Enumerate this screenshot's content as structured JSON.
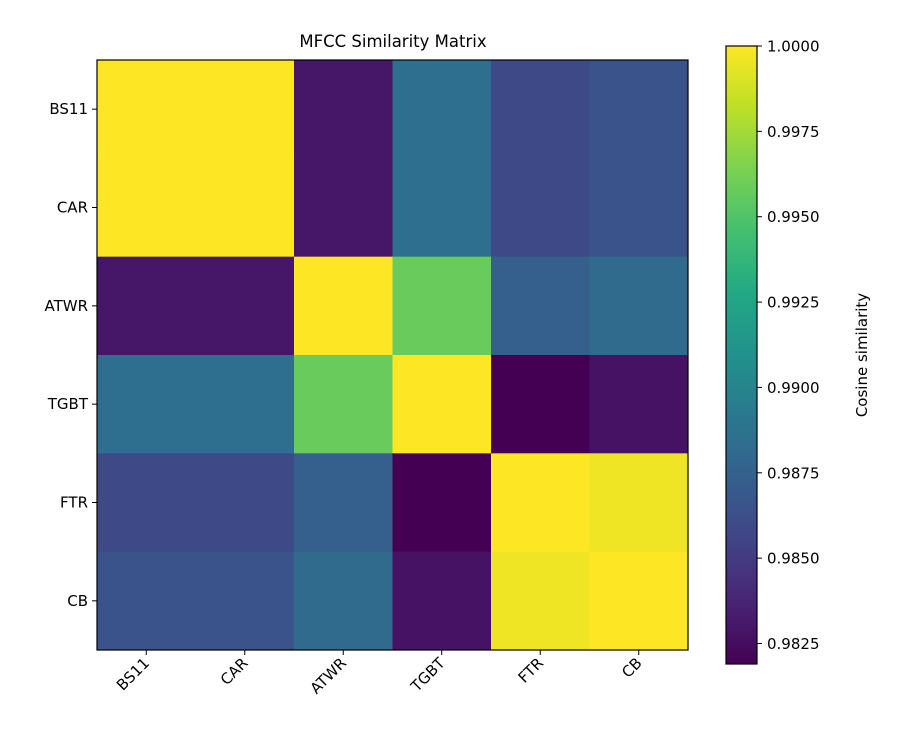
{
  "chart_data": {
    "type": "heatmap",
    "title": "MFCC Similarity Matrix",
    "x_labels": [
      "BS11",
      "CAR",
      "ATWR",
      "TGBT",
      "FTR",
      "CB"
    ],
    "y_labels": [
      "BS11",
      "CAR",
      "ATWR",
      "TGBT",
      "FTR",
      "CB"
    ],
    "values": [
      [
        1.0,
        1.0,
        0.983,
        0.9884,
        0.9859,
        0.9866
      ],
      [
        1.0,
        1.0,
        0.983,
        0.9884,
        0.9859,
        0.9866
      ],
      [
        0.983,
        0.983,
        1.0,
        0.9958,
        0.9873,
        0.9882
      ],
      [
        0.9884,
        0.9884,
        0.9958,
        1.0,
        0.9819,
        0.9828
      ],
      [
        0.9859,
        0.9859,
        0.9873,
        0.9819,
        1.0,
        0.9996
      ],
      [
        0.9866,
        0.9866,
        0.9882,
        0.9828,
        0.9996,
        1.0
      ]
    ],
    "colormap": "viridis",
    "colorbar": {
      "label": "Cosine similarity",
      "range": [
        0.9819,
        1.0
      ],
      "ticks": [
        0.9825,
        0.985,
        0.9875,
        0.99,
        0.9925,
        0.995,
        0.9975,
        1.0
      ],
      "tick_labels": [
        "0.9825",
        "0.9850",
        "0.9875",
        "0.9900",
        "0.9925",
        "0.9950",
        "0.9975",
        "1.0000"
      ]
    }
  }
}
